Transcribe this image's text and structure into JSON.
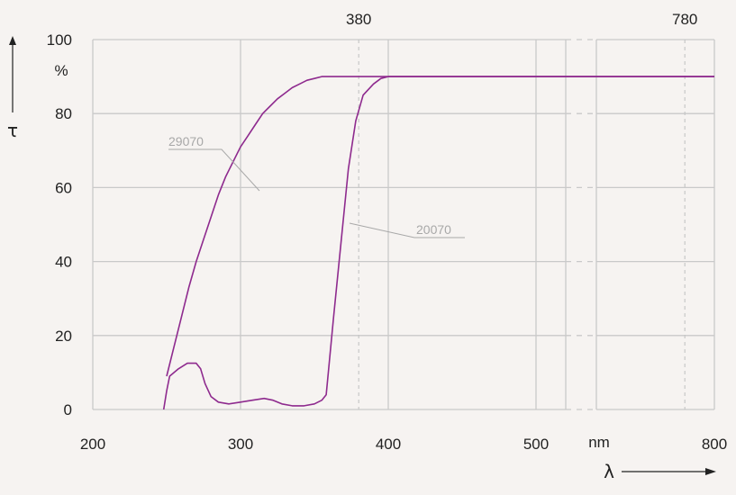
{
  "chart_data": {
    "type": "line",
    "ylabel": "τ",
    "yunit": "%",
    "xlabel": "λ",
    "xunit": "nm",
    "ylim": [
      0,
      100
    ],
    "x_ticks": [
      "200",
      "300",
      "400",
      "500",
      "800"
    ],
    "y_ticks": [
      "0",
      "20",
      "40",
      "60",
      "80",
      "100"
    ],
    "top_markers": [
      "380",
      "780"
    ],
    "axis_break": "between 500 and 800 nm",
    "grid": true,
    "color": "#8e2a8e",
    "series": [
      {
        "name": "29070",
        "points": [
          [
            250,
            9
          ],
          [
            255,
            17
          ],
          [
            260,
            25
          ],
          [
            265,
            33
          ],
          [
            270,
            40
          ],
          [
            275,
            46
          ],
          [
            280,
            52
          ],
          [
            285,
            58
          ],
          [
            290,
            63
          ],
          [
            295,
            67
          ],
          [
            300,
            71
          ],
          [
            305,
            74
          ],
          [
            310,
            77
          ],
          [
            315,
            80
          ],
          [
            320,
            82
          ],
          [
            325,
            84
          ],
          [
            330,
            85.5
          ],
          [
            335,
            87
          ],
          [
            340,
            88
          ],
          [
            345,
            89
          ],
          [
            350,
            89.5
          ],
          [
            355,
            90
          ],
          [
            360,
            90
          ],
          [
            800,
            90
          ]
        ]
      },
      {
        "name": "20070",
        "points": [
          [
            248,
            0
          ],
          [
            250,
            5
          ],
          [
            252,
            9
          ],
          [
            258,
            11
          ],
          [
            264,
            12.5
          ],
          [
            270,
            12.5
          ],
          [
            273,
            11
          ],
          [
            276,
            7
          ],
          [
            280,
            3.5
          ],
          [
            285,
            2
          ],
          [
            292,
            1.5
          ],
          [
            300,
            2
          ],
          [
            308,
            2.5
          ],
          [
            316,
            3
          ],
          [
            322,
            2.5
          ],
          [
            328,
            1.5
          ],
          [
            335,
            1
          ],
          [
            343,
            1
          ],
          [
            350,
            1.5
          ],
          [
            355,
            2.5
          ],
          [
            358,
            4
          ],
          [
            363,
            25
          ],
          [
            368,
            45
          ],
          [
            373,
            65
          ],
          [
            378,
            78
          ],
          [
            383,
            85
          ],
          [
            390,
            88
          ],
          [
            395,
            89.5
          ],
          [
            400,
            90
          ],
          [
            800,
            90
          ]
        ]
      }
    ]
  }
}
